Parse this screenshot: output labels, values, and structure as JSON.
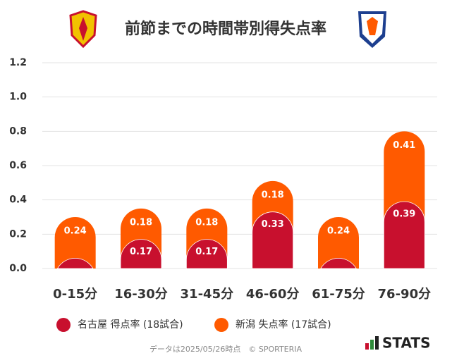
{
  "chart_data": {
    "type": "stacked-bar",
    "title": "前節までの時間帯別得失点率",
    "categories": [
      "0-15分",
      "16-30分",
      "31-45分",
      "46-60分",
      "61-75分",
      "76-90分"
    ],
    "series": [
      {
        "name": "名古屋 得点率 (18試合)",
        "color": "#c8102e",
        "values": [
          0.06,
          0.17,
          0.17,
          0.33,
          0.06,
          0.39
        ],
        "value_labels": [
          null,
          "0.17",
          "0.17",
          "0.33",
          null,
          "0.39"
        ]
      },
      {
        "name": "新潟 失点率 (17試合)",
        "color": "#ff5a00",
        "values": [
          0.24,
          0.18,
          0.18,
          0.18,
          0.24,
          0.41
        ],
        "value_labels": [
          "0.24",
          "0.18",
          "0.18",
          "0.18",
          "0.24",
          "0.41"
        ]
      }
    ],
    "ylim": [
      0,
      1.2
    ],
    "yticks": [
      {
        "value": 0,
        "label": "0.0"
      },
      0.2,
      0.4,
      0.6,
      0.8,
      {
        "value": 1,
        "label": "1.0"
      },
      1.2
    ],
    "grid": true,
    "footer": "データは2025/05/26時点　© SPORTERIA",
    "brand": "STATS"
  }
}
